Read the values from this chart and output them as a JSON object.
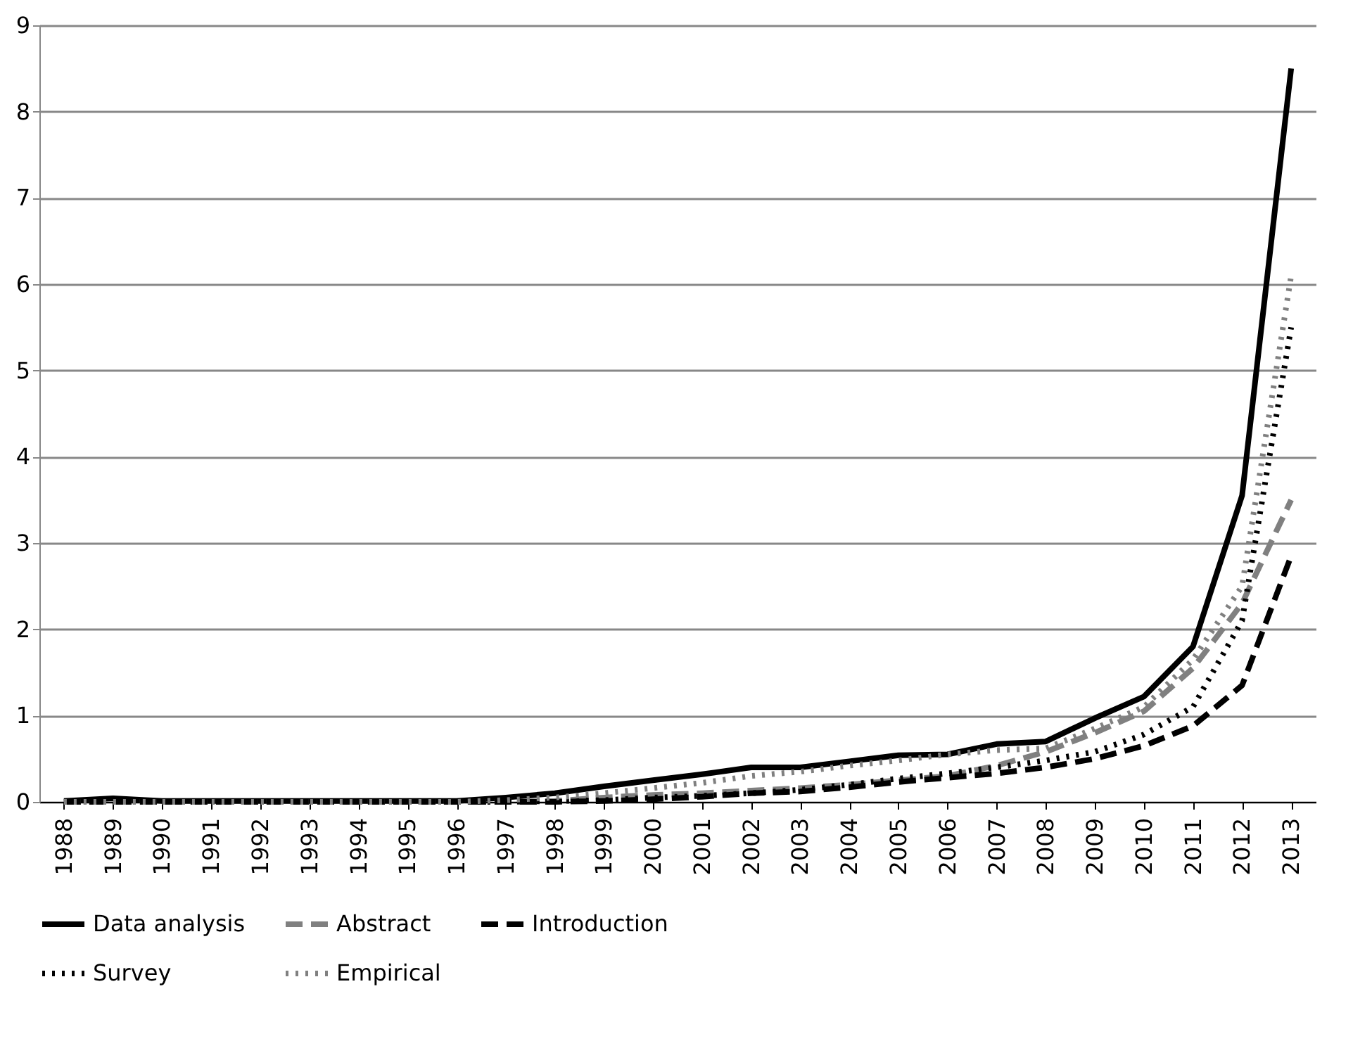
{
  "chart_data": {
    "type": "line",
    "categories": [
      "1988",
      "1989",
      "1990",
      "1991",
      "1992",
      "1993",
      "1994",
      "1995",
      "1996",
      "1997",
      "1998",
      "1999",
      "2000",
      "2001",
      "2002",
      "2003",
      "2004",
      "2005",
      "2006",
      "2007",
      "2008",
      "2009",
      "2010",
      "2011",
      "2012",
      "2013"
    ],
    "series": [
      {
        "name": "Data analysis",
        "color": "#000000",
        "line_style": "solid",
        "values": [
          0.01,
          0.04,
          0.01,
          0.01,
          0.01,
          0.01,
          0.01,
          0.01,
          0.01,
          0.05,
          0.1,
          0.18,
          0.25,
          0.32,
          0.4,
          0.4,
          0.47,
          0.54,
          0.55,
          0.67,
          0.7,
          0.97,
          1.22,
          1.8,
          3.55,
          8.5
        ]
      },
      {
        "name": "Abstract",
        "color": "#808080",
        "line_style": "dashed",
        "values": [
          0,
          0,
          0,
          0,
          0,
          0,
          0,
          0,
          0,
          0,
          0.01,
          0.05,
          0.08,
          0.1,
          0.13,
          0.16,
          0.2,
          0.25,
          0.3,
          0.42,
          0.58,
          0.8,
          1.05,
          1.55,
          2.3,
          3.5
        ]
      },
      {
        "name": "Introduction",
        "color": "#000000",
        "line_style": "dashed",
        "values": [
          0,
          0,
          0,
          0,
          0,
          0,
          0,
          0,
          0,
          0,
          0,
          0.01,
          0.03,
          0.06,
          0.1,
          0.12,
          0.17,
          0.23,
          0.28,
          0.33,
          0.4,
          0.5,
          0.65,
          0.88,
          1.35,
          2.85
        ]
      },
      {
        "name": "Survey",
        "color": "#000000",
        "line_style": "dotted",
        "values": [
          0,
          0,
          0,
          0,
          0,
          0,
          0,
          0,
          0,
          0,
          0.01,
          0.02,
          0.05,
          0.07,
          0.1,
          0.14,
          0.2,
          0.27,
          0.33,
          0.4,
          0.48,
          0.58,
          0.78,
          1.1,
          2.1,
          5.5
        ]
      },
      {
        "name": "Empirical",
        "color": "#808080",
        "line_style": "dotted",
        "values": [
          0,
          0,
          0,
          0,
          0,
          0,
          0,
          0,
          0,
          0.02,
          0.05,
          0.1,
          0.16,
          0.22,
          0.3,
          0.35,
          0.42,
          0.48,
          0.55,
          0.6,
          0.62,
          0.85,
          1.1,
          1.65,
          2.5,
          6.1
        ]
      }
    ],
    "ylim": [
      0,
      9
    ],
    "yticks": [
      0,
      1,
      2,
      3,
      4,
      5,
      6,
      7,
      8,
      9
    ],
    "grid": "y",
    "legend": "bottom",
    "marker": "none"
  }
}
